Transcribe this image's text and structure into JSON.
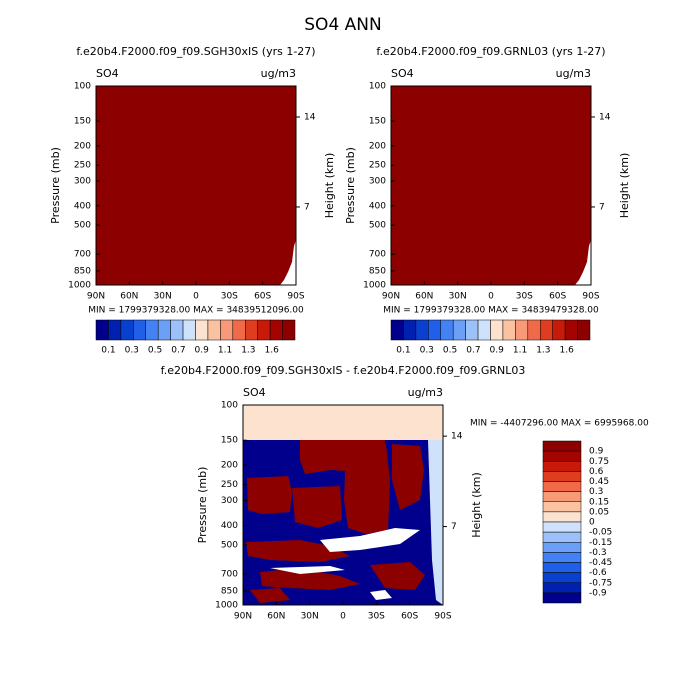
{
  "title": "SO4 ANN",
  "chart_data": [
    {
      "type": "contour",
      "title": "f.e20b4.F2000.f09_f09.SGH30xIS (yrs 1-27)",
      "left_label": "SO4",
      "right_label": "ug/m3",
      "ylabel": "Pressure (mb)",
      "y2label": "Height (km)",
      "ylog": true,
      "xlim": [
        90,
        -90
      ],
      "xticks": [
        {
          "value": 90,
          "label": "90N"
        },
        {
          "value": 60,
          "label": "60N"
        },
        {
          "value": 30,
          "label": "30N"
        },
        0,
        {
          "value": -30,
          "label": "30S"
        },
        {
          "value": -60,
          "label": "60S"
        },
        {
          "value": -90,
          "label": "90S"
        }
      ],
      "ylim": [
        1000,
        100
      ],
      "yticks": [
        100,
        150,
        200,
        250,
        300,
        400,
        500,
        700,
        850,
        1000
      ],
      "y2lim": [
        0.93,
        16.41
      ],
      "y2ticks": [
        14,
        7
      ],
      "stats": "MIN = 1799379328.00   MAX = 34839512096.00",
      "colorbar": {
        "orientation": "horizontal",
        "colors": [
          "#00008c",
          "#0020b0",
          "#0a40d0",
          "#2060e8",
          "#4282f2",
          "#6ca0f6",
          "#9cc0f8",
          "#cfe2fb",
          "#fde3cf",
          "#fbc2a2",
          "#f89a78",
          "#f06a4a",
          "#e03c20",
          "#c81a08",
          "#a40400",
          "#8c0000"
        ],
        "labels": [
          0.1,
          0.3,
          0.5,
          0.7,
          0.9,
          1.1,
          1.3,
          1.6
        ]
      }
    },
    {
      "type": "contour",
      "title": "f.e20b4.F2000.f09_f09.GRNL03 (yrs 1-27)",
      "left_label": "SO4",
      "right_label": "ug/m3",
      "ylabel": "Pressure (mb)",
      "y2label": "Height (km)",
      "ylog": true,
      "xlim": [
        90,
        -90
      ],
      "xticks": [
        {
          "value": 90,
          "label": "90N"
        },
        {
          "value": 60,
          "label": "60N"
        },
        {
          "value": 30,
          "label": "30N"
        },
        0,
        {
          "value": -30,
          "label": "30S"
        },
        {
          "value": -60,
          "label": "60S"
        },
        {
          "value": -90,
          "label": "90S"
        }
      ],
      "ylim": [
        1000,
        100
      ],
      "yticks": [
        100,
        150,
        200,
        250,
        300,
        400,
        500,
        700,
        850,
        1000
      ],
      "y2lim": [
        0.93,
        16.41
      ],
      "y2ticks": [
        14,
        7
      ],
      "stats": "MIN = 1799379328.00   MAX = 34839479328.00",
      "colorbar": {
        "orientation": "horizontal",
        "colors": [
          "#00008c",
          "#0020b0",
          "#0a40d0",
          "#2060e8",
          "#4282f2",
          "#6ca0f6",
          "#9cc0f8",
          "#cfe2fb",
          "#fde3cf",
          "#fbc2a2",
          "#f89a78",
          "#f06a4a",
          "#e03c20",
          "#c81a08",
          "#a40400",
          "#8c0000"
        ],
        "labels": [
          0.1,
          0.3,
          0.5,
          0.7,
          0.9,
          1.1,
          1.3,
          1.6
        ]
      }
    },
    {
      "type": "contour",
      "title": "f.e20b4.F2000.f09_f09.SGH30xIS - f.e20b4.F2000.f09_f09.GRNL03",
      "left_label": "SO4",
      "right_label": "ug/m3",
      "ylabel": "Pressure (mb)",
      "y2label": "Height (km)",
      "ylog": true,
      "xlim": [
        90,
        -90
      ],
      "xticks": [
        {
          "value": 90,
          "label": "90N"
        },
        {
          "value": 60,
          "label": "60N"
        },
        {
          "value": 30,
          "label": "30N"
        },
        0,
        {
          "value": -30,
          "label": "30S"
        },
        {
          "value": -60,
          "label": "60S"
        },
        {
          "value": -90,
          "label": "90S"
        }
      ],
      "ylim": [
        1000,
        100
      ],
      "yticks": [
        100,
        150,
        200,
        250,
        300,
        400,
        500,
        700,
        850,
        1000
      ],
      "y2lim": [
        0.93,
        16.41
      ],
      "y2ticks": [
        14,
        7
      ],
      "stats": "MIN = -4407296.00   MAX = 6995968.00",
      "colorbar": {
        "orientation": "vertical",
        "colors": [
          "#8c0000",
          "#a40400",
          "#c81a08",
          "#e03c20",
          "#f06a4a",
          "#f89a78",
          "#fbc2a2",
          "#fde3cf",
          "#cfe2fb",
          "#9cc0f8",
          "#6ca0f6",
          "#4282f2",
          "#2060e8",
          "#0a40d0",
          "#0020b0",
          "#00008c"
        ],
        "labels": [
          0.9,
          0.75,
          0.6,
          0.45,
          0.3,
          0.15,
          0.05,
          0,
          -0.05,
          -0.15,
          -0.3,
          -0.45,
          -0.6,
          -0.75,
          -0.9
        ]
      }
    }
  ]
}
